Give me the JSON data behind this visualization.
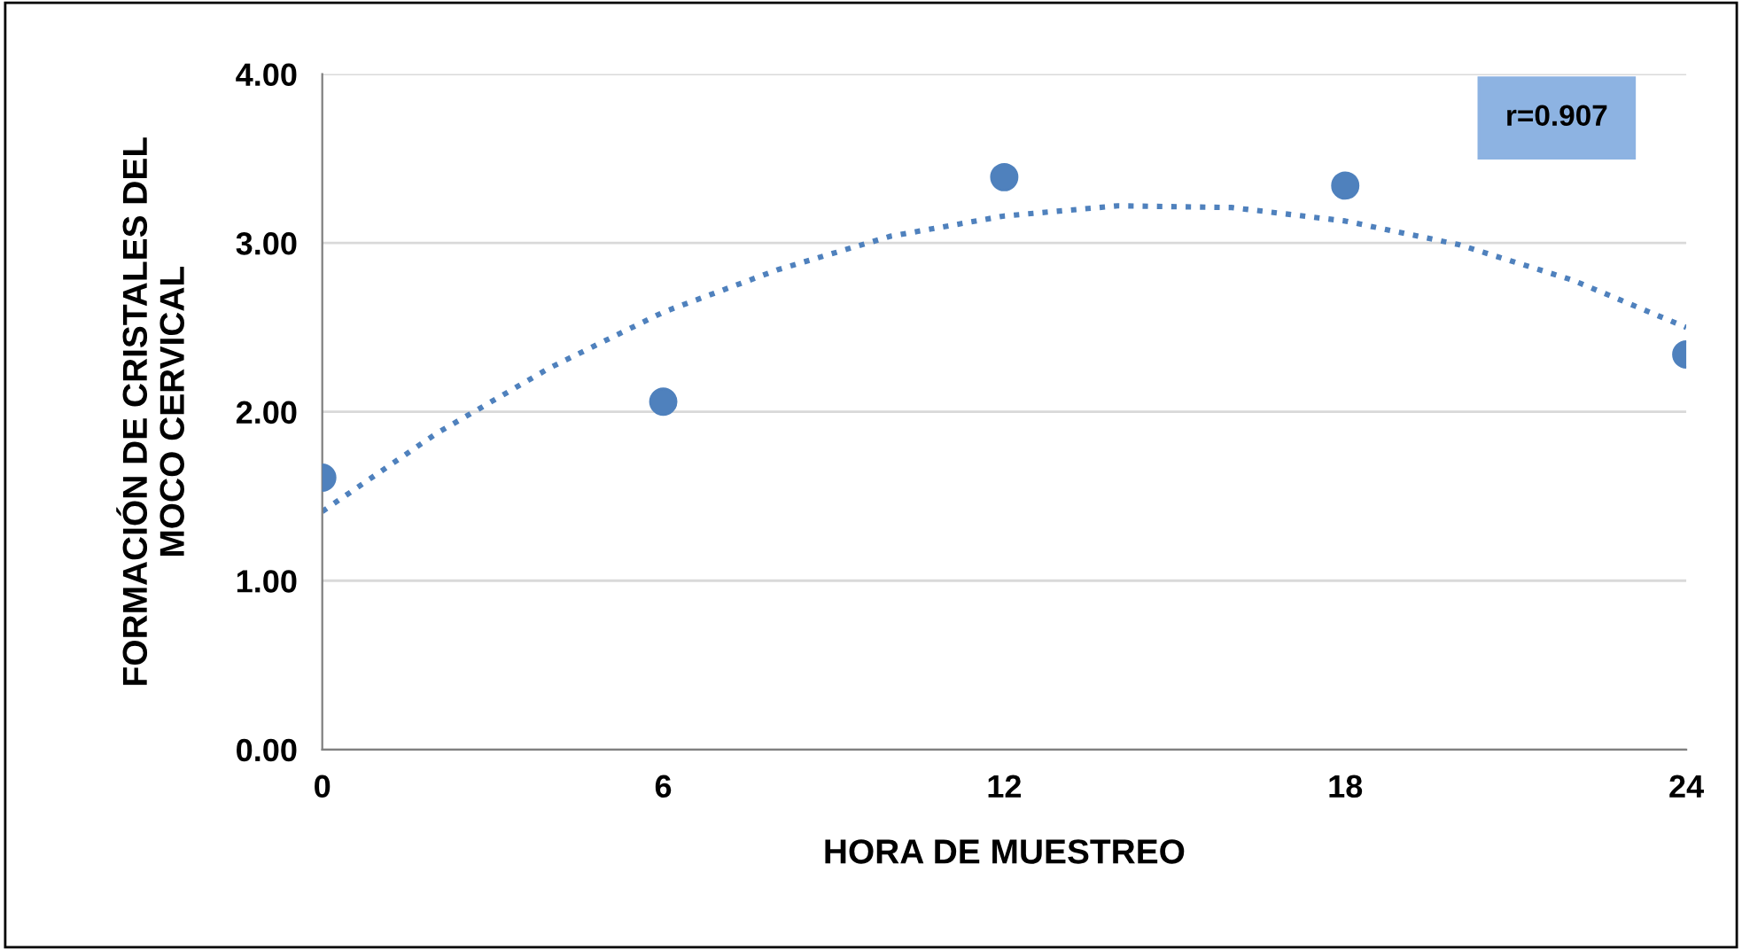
{
  "chart_data": {
    "type": "scatter",
    "xlabel": "HORA DE MUESTREO",
    "ylabel": "FORMACIÓN DE CRISTALES DEL\nMOCO CERVICAL",
    "x": [
      0,
      6,
      12,
      18,
      24
    ],
    "series": [
      {
        "color": "#4f81bd",
        "marker": "circle",
        "values": [
          1.61,
          2.06,
          3.39,
          3.34,
          2.34
        ]
      },
      {
        "type": "line",
        "color": "#4f81bd",
        "line_style": "dotted",
        "marker": "none",
        "x": [
          0,
          2,
          4,
          6,
          8,
          10,
          12,
          14,
          16,
          18,
          20,
          22,
          24
        ],
        "values": [
          1.41,
          1.87,
          2.26,
          2.59,
          2.84,
          3.04,
          3.16,
          3.22,
          3.21,
          3.13,
          2.99,
          2.78,
          2.5
        ]
      }
    ],
    "xlim": [
      0,
      24
    ],
    "xticks": [
      0,
      6,
      12,
      18,
      24
    ],
    "ylim": [
      0,
      4
    ],
    "yticks": [
      {
        "value": 0,
        "label": "0.00"
      },
      {
        "value": 1,
        "label": "1.00"
      },
      {
        "value": 2,
        "label": "2.00"
      },
      {
        "value": 3,
        "label": "3.00"
      },
      {
        "value": 4,
        "label": "4.00"
      }
    ],
    "grid": "y",
    "legend": false,
    "annotations": [
      "r=0.907"
    ]
  }
}
